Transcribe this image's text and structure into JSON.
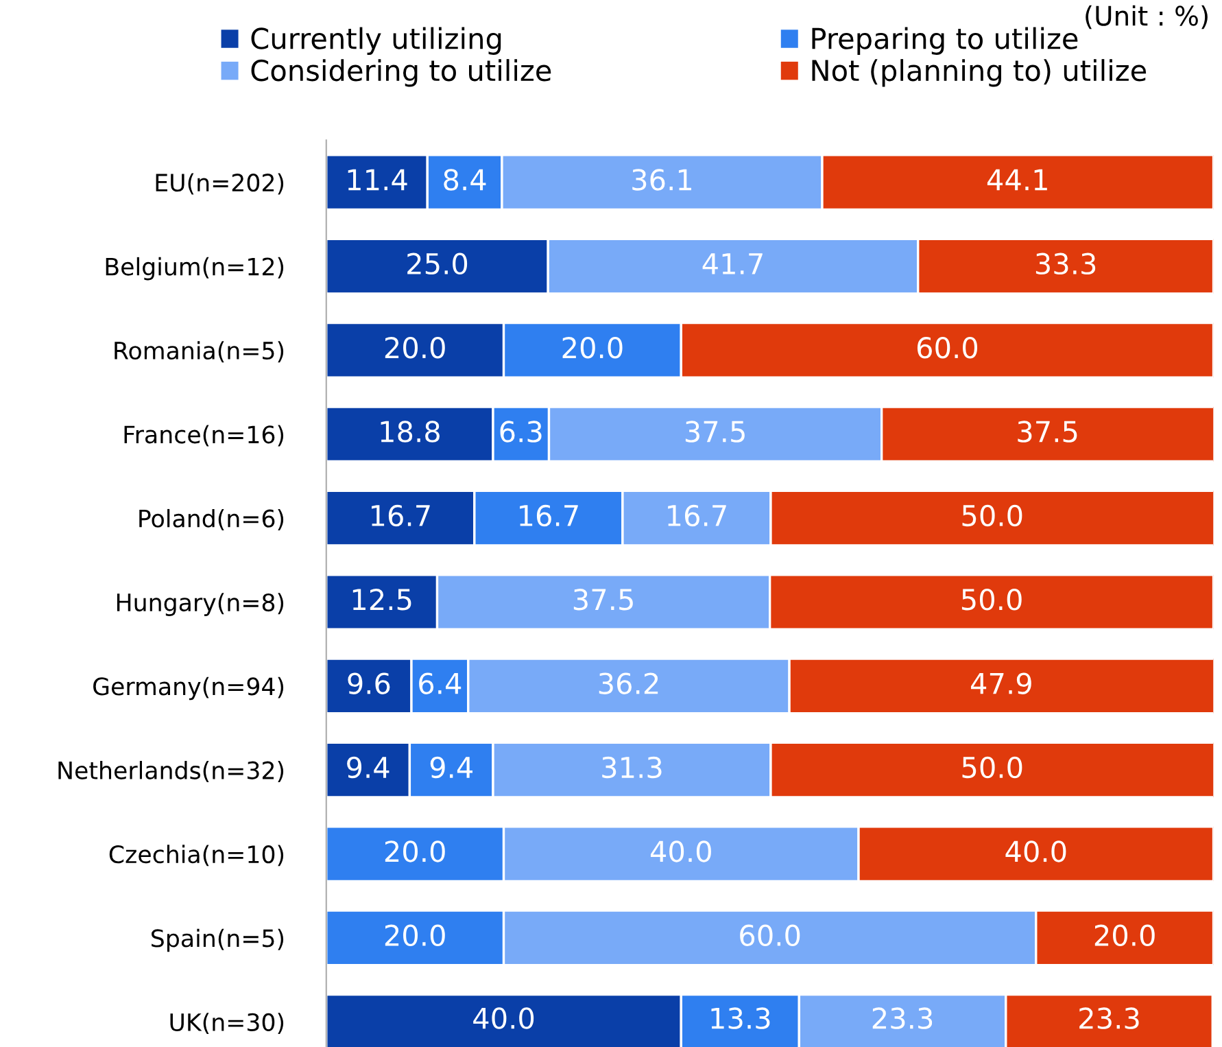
{
  "chart_data": {
    "type": "bar",
    "orientation": "horizontal",
    "stacked": true,
    "tick_labels": "y",
    "legend": "top",
    "grid": false,
    "xlim": [
      0,
      100
    ],
    "annotations": [
      "(Unit : %)"
    ],
    "categories": [
      "EU(n=202)",
      "Belgium(n=12)",
      "Romania(n=5)",
      "France(n=16)",
      "Poland(n=6)",
      "Hungary(n=8)",
      "Germany(n=94)",
      "Netherlands(n=32)",
      "Czechia(n=10)",
      "Spain(n=5)",
      "UK(n=30)"
    ],
    "series": [
      {
        "name": "Currently utilizing",
        "color": "#0a3fa8",
        "values": [
          11.4,
          25.0,
          20.0,
          18.8,
          16.7,
          12.5,
          9.6,
          9.4,
          null,
          null,
          40.0
        ],
        "value_labels": [
          "11.4",
          "25.0",
          "20.0",
          "18.8",
          "16.7",
          "12.5",
          "9.6",
          "9.4",
          null,
          null,
          "40.0"
        ]
      },
      {
        "name": "Preparing to utilize",
        "color": "#2f7ff0",
        "values": [
          8.4,
          null,
          20.0,
          6.3,
          16.7,
          null,
          6.4,
          9.4,
          20.0,
          20.0,
          13.3
        ],
        "value_labels": [
          "8.4",
          null,
          "20.0",
          "6.3",
          "16.7",
          null,
          "6.4",
          "9.4",
          "20.0",
          "20.0",
          "13.3"
        ]
      },
      {
        "name": "Considering to utilize",
        "color": "#78aaf8",
        "values": [
          36.1,
          41.7,
          null,
          37.5,
          16.7,
          37.5,
          36.2,
          31.3,
          40.0,
          60.0,
          23.3
        ],
        "value_labels": [
          "36.1",
          "41.7",
          null,
          "37.5",
          "16.7",
          "37.5",
          "36.2",
          "31.3",
          "40.0",
          "60.0",
          "23.3"
        ]
      },
      {
        "name": "Not (planning to) utilize",
        "color": "#e03a0c",
        "values": [
          44.1,
          33.3,
          60.0,
          37.5,
          50.0,
          50.0,
          47.9,
          50.0,
          40.0,
          20.0,
          23.3
        ],
        "value_labels": [
          "44.1",
          "33.3",
          "60.0",
          "37.5",
          "50.0",
          "50.0",
          "47.9",
          "50.0",
          "40.0",
          "20.0",
          "23.3"
        ]
      }
    ]
  }
}
